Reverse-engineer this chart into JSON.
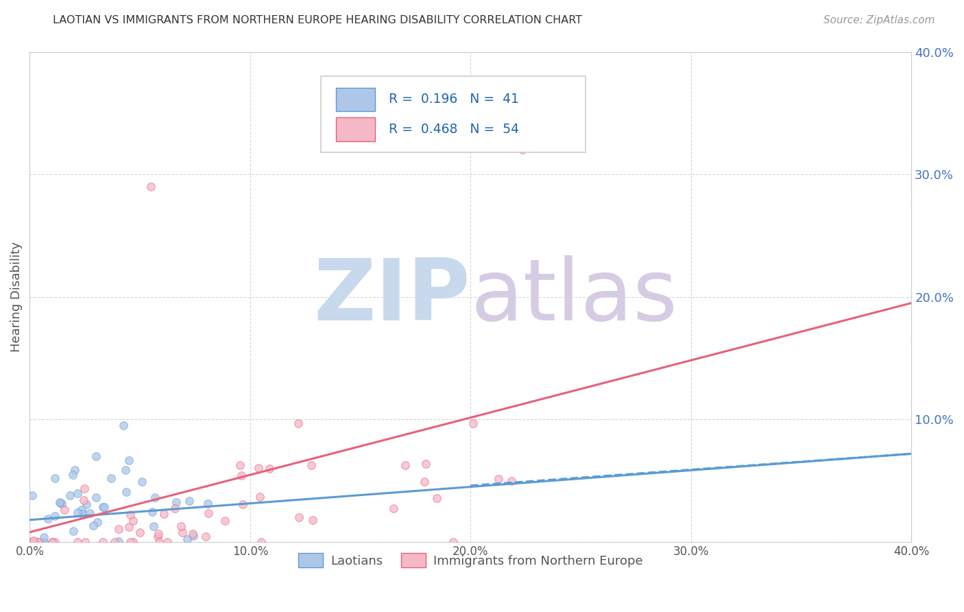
{
  "title": "LAOTIAN VS IMMIGRANTS FROM NORTHERN EUROPE HEARING DISABILITY CORRELATION CHART",
  "source": "Source: ZipAtlas.com",
  "ylabel": "Hearing Disability",
  "xlim": [
    0.0,
    0.4
  ],
  "ylim": [
    0.0,
    0.4
  ],
  "xticks": [
    0.0,
    0.1,
    0.2,
    0.3,
    0.4
  ],
  "yticks": [
    0.0,
    0.1,
    0.2,
    0.3,
    0.4
  ],
  "xtick_labels": [
    "0.0%",
    "10.0%",
    "20.0%",
    "30.0%",
    "40.0%"
  ],
  "right_ytick_labels": [
    "",
    "10.0%",
    "20.0%",
    "30.0%",
    "40.0%"
  ],
  "group1_label": "Laotians",
  "group1_color": "#aec6e8",
  "group1_R": 0.196,
  "group1_N": 41,
  "group1_line_color": "#5b9bd5",
  "group2_label": "Immigrants from Northern Europe",
  "group2_color": "#f4b8c8",
  "group2_R": 0.468,
  "group2_N": 54,
  "group2_line_color": "#e8607a",
  "legend_text_color": "#2166ac",
  "background_color": "#ffffff",
  "grid_color": "#cccccc",
  "title_color": "#333333",
  "source_color": "#999999",
  "ylabel_color": "#555555",
  "right_tick_color": "#4472c4",
  "bottom_tick_color": "#555555",
  "watermark_zip_color": "#c8d8ed",
  "watermark_atlas_color": "#d5cce4",
  "scatter_size": 70,
  "scatter_alpha": 0.75,
  "line_width": 2.2,
  "group1_line_x0": 0.0,
  "group1_line_y0": 0.018,
  "group1_line_x1": 0.4,
  "group1_line_y1": 0.072,
  "group2_line_x0": 0.0,
  "group2_line_y0": 0.008,
  "group2_line_x1": 0.4,
  "group2_line_y1": 0.195
}
